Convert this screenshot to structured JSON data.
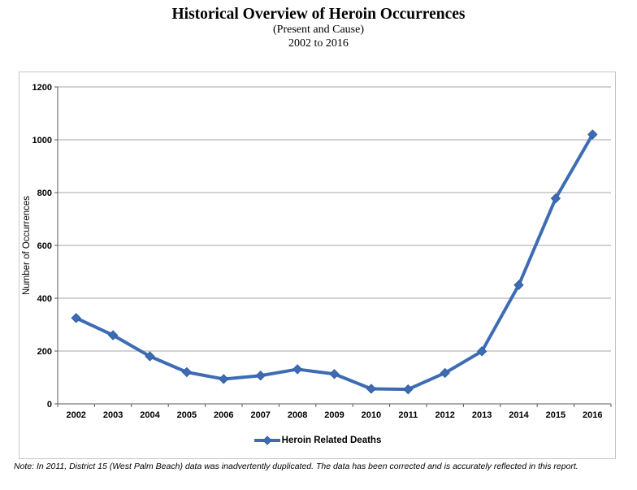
{
  "header": {
    "title": "Historical Overview of Heroin Occurrences",
    "subtitle1": "(Present and Cause)",
    "subtitle2": "2002 to 2016"
  },
  "chart_data": {
    "type": "line",
    "title": "Historical Overview of Heroin Occurrences",
    "categories": [
      "2002",
      "2003",
      "2004",
      "2005",
      "2006",
      "2007",
      "2008",
      "2009",
      "2010",
      "2011",
      "2012",
      "2013",
      "2014",
      "2015",
      "2016"
    ],
    "series": [
      {
        "name": "Heroin Related Deaths",
        "values": [
          325,
          260,
          180,
          120,
          94,
          107,
          131,
          113,
          57,
          55,
          117,
          199,
          450,
          778,
          1020
        ]
      }
    ],
    "xlabel": "",
    "ylabel": "Number of Occurrences",
    "ylim": [
      0,
      1200
    ],
    "ytick_step": 200,
    "grid": true,
    "legend_position": "bottom",
    "colors": {
      "series": "#3d6cb5",
      "marker_edge": "#34movie5e9e",
      "marker_edge_fixed": "#355e9e",
      "gridline": "#a6a6a6",
      "axis": "#595959"
    }
  },
  "note": {
    "text": "Note: In 2011, District 15 (West Palm Beach) data was inadvertently duplicated. The data has been corrected and is accurately reflected in this report."
  }
}
